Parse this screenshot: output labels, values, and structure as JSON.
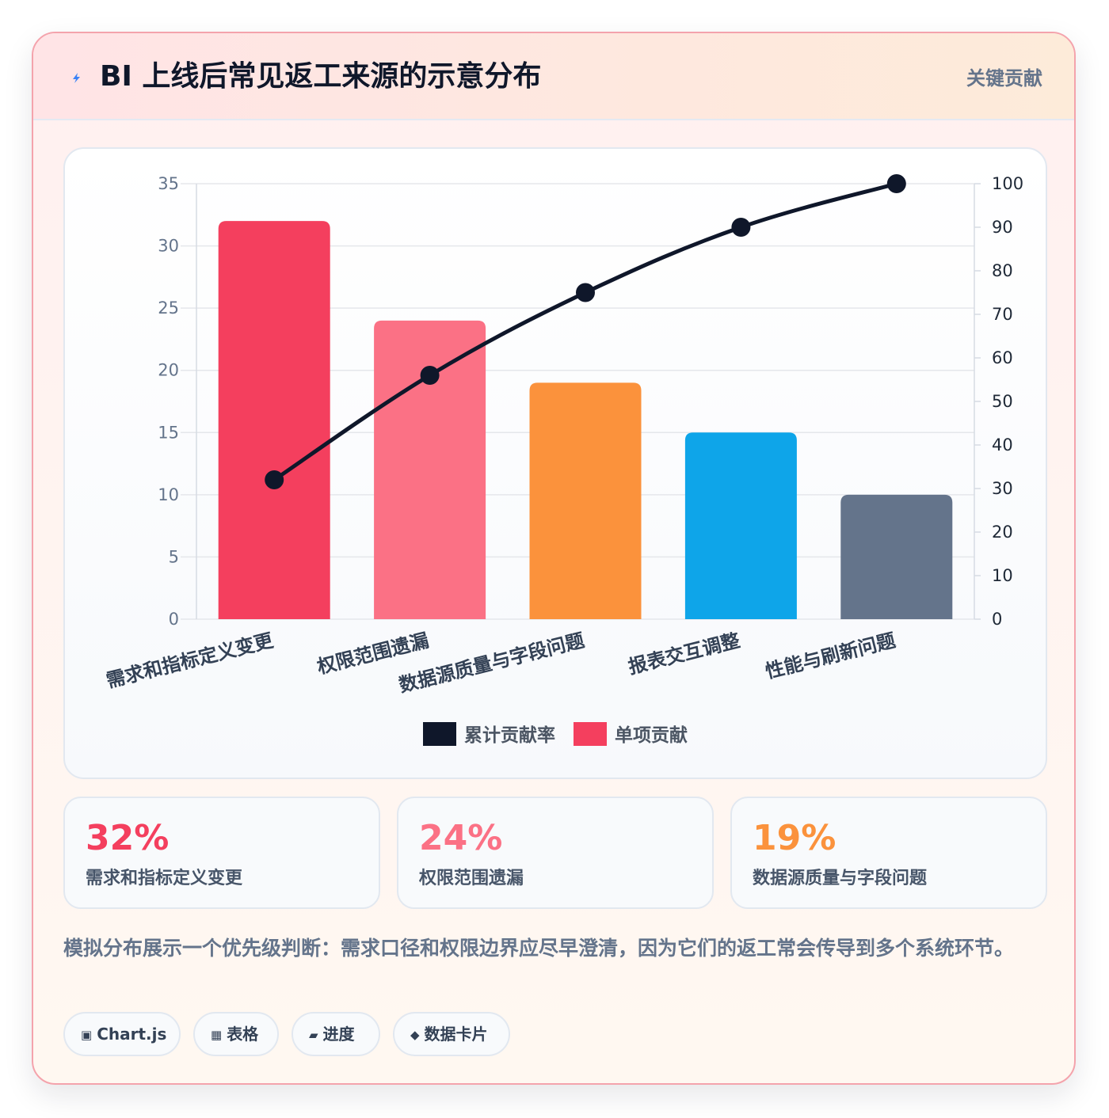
{
  "header": {
    "icon": "lightning-icon",
    "title": "BI 上线后常见返工来源的示意分布",
    "badge": "关键贡献"
  },
  "colors": {
    "bar_colors": [
      "#f43f5e",
      "#fb7185",
      "#fb923c",
      "#0ea5e9",
      "#64748b"
    ],
    "line": "#0f172a",
    "accent_red": "#f43f5e",
    "accent_pink": "#fb7185",
    "accent_orange": "#fb923c"
  },
  "chart_data": {
    "type": "bar",
    "categories": [
      "需求和指标定义变更",
      "权限范围遗漏",
      "数据源质量与字段问题",
      "报表交互调整",
      "性能与刷新问题"
    ],
    "series": [
      {
        "name": "单项贡献",
        "type": "bar",
        "axis": "left",
        "values": [
          32,
          24,
          19,
          15,
          10
        ]
      },
      {
        "name": "累计贡献率",
        "type": "line",
        "axis": "right",
        "values": [
          32,
          56,
          75,
          90,
          100
        ]
      }
    ],
    "y_left": {
      "min": 0,
      "max": 35,
      "ticks": [
        "0",
        "5",
        "10",
        "15",
        "20",
        "25",
        "30",
        "35"
      ]
    },
    "y_right": {
      "min": 0,
      "max": 100,
      "ticks": [
        "0",
        "10",
        "20",
        "30",
        "40",
        "50",
        "60",
        "70",
        "80",
        "90",
        "100"
      ]
    },
    "legend": [
      {
        "label": "累计贡献率",
        "color": "#0f172a"
      },
      {
        "label": "单项贡献",
        "color": "#f43f5e"
      }
    ],
    "legend_position": "bottom",
    "grid": true
  },
  "stats": [
    {
      "value": "32%",
      "label": "需求和指标定义变更",
      "color": "#f43f5e"
    },
    {
      "value": "24%",
      "label": "权限范围遗漏",
      "color": "#fb7185"
    },
    {
      "value": "19%",
      "label": "数据源质量与字段问题",
      "color": "#fb923c"
    }
  ],
  "note": "模拟分布展示一个优先级判断：需求口径和权限边界应尽早澄清，因为它们的返工常会传导到多个系统环节。",
  "tags": [
    {
      "icon": "▣",
      "label": "Chart.js"
    },
    {
      "icon": "▦",
      "label": "表格"
    },
    {
      "icon": "▰",
      "label": "进度"
    },
    {
      "icon": "◆",
      "label": "数据卡片"
    }
  ]
}
